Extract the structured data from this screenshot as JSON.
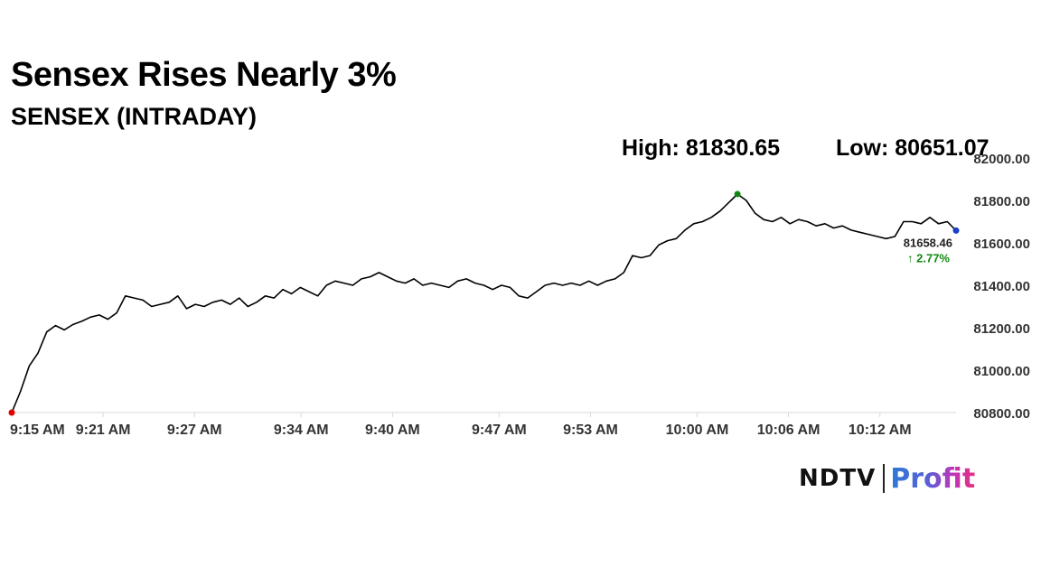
{
  "header": {
    "title": "Sensex Rises Nearly 3%",
    "subtitle": "SENSEX (INTRADAY)",
    "high_text": "High: 81830.65",
    "low_text": "Low: 80651.07"
  },
  "logo": {
    "ndtv": "NDTV",
    "profit": "Profit"
  },
  "chart_data": {
    "type": "line",
    "x_tick_labels": [
      "9:15 AM",
      "9:21 AM",
      "9:27 AM",
      "9:34 AM",
      "9:40 AM",
      "9:47 AM",
      "9:53 AM",
      "10:00 AM",
      "10:06 AM",
      "10:12 AM"
    ],
    "y_tick_labels": [
      "80800.00",
      "81000.00",
      "81200.00",
      "81400.00",
      "81600.00",
      "81800.00",
      "82000.00"
    ],
    "ylim": [
      80800,
      82000
    ],
    "start_time": "9:15 AM",
    "end_time": "10:17 AM",
    "series": [
      {
        "color": "#000000",
        "points": [
          [
            "9:15",
            80800
          ],
          [
            "9:15",
            80900
          ],
          [
            "9:16",
            81020
          ],
          [
            "9:16",
            81080
          ],
          [
            "9:17",
            81180
          ],
          [
            "9:17",
            81210
          ],
          [
            "9:18",
            81190
          ],
          [
            "9:18",
            81215
          ],
          [
            "9:19",
            81230
          ],
          [
            "9:20",
            81250
          ],
          [
            "9:20",
            81260
          ],
          [
            "9:21",
            81240
          ],
          [
            "9:21",
            81270
          ],
          [
            "9:22",
            81350
          ],
          [
            "9:22",
            81340
          ],
          [
            "9:23",
            81330
          ],
          [
            "9:23",
            81300
          ],
          [
            "9:24",
            81310
          ],
          [
            "9:24",
            81320
          ],
          [
            "9:25",
            81350
          ],
          [
            "9:25",
            81290
          ],
          [
            "9:26",
            81310
          ],
          [
            "9:27",
            81300
          ],
          [
            "9:27",
            81320
          ],
          [
            "9:28",
            81330
          ],
          [
            "9:28",
            81310
          ],
          [
            "9:29",
            81340
          ],
          [
            "9:29",
            81300
          ],
          [
            "9:30",
            81320
          ],
          [
            "9:31",
            81350
          ],
          [
            "9:31",
            81340
          ],
          [
            "9:32",
            81380
          ],
          [
            "9:33",
            81360
          ],
          [
            "9:33",
            81390
          ],
          [
            "9:34",
            81370
          ],
          [
            "9:34",
            81350
          ],
          [
            "9:35",
            81400
          ],
          [
            "9:36",
            81420
          ],
          [
            "9:36",
            81410
          ],
          [
            "9:37",
            81400
          ],
          [
            "9:37",
            81430
          ],
          [
            "9:38",
            81440
          ],
          [
            "9:38",
            81460
          ],
          [
            "9:39",
            81440
          ],
          [
            "9:40",
            81420
          ],
          [
            "9:40",
            81410
          ],
          [
            "9:41",
            81430
          ],
          [
            "9:41",
            81400
          ],
          [
            "9:42",
            81410
          ],
          [
            "9:43",
            81400
          ],
          [
            "9:43",
            81390
          ],
          [
            "9:44",
            81420
          ],
          [
            "9:44",
            81430
          ],
          [
            "9:45",
            81410
          ],
          [
            "9:46",
            81400
          ],
          [
            "9:46",
            81380
          ],
          [
            "9:47",
            81400
          ],
          [
            "9:47",
            81390
          ],
          [
            "9:48",
            81350
          ],
          [
            "9:48",
            81340
          ],
          [
            "9:49",
            81370
          ],
          [
            "9:49",
            81400
          ],
          [
            "9:50",
            81410
          ],
          [
            "9:51",
            81400
          ],
          [
            "9:51",
            81410
          ],
          [
            "9:52",
            81400
          ],
          [
            "9:52",
            81420
          ],
          [
            "9:53",
            81400
          ],
          [
            "9:54",
            81420
          ],
          [
            "9:54",
            81430
          ],
          [
            "9:55",
            81460
          ],
          [
            "9:55",
            81540
          ],
          [
            "9:56",
            81530
          ],
          [
            "9:57",
            81540
          ],
          [
            "9:57",
            81590
          ],
          [
            "9:58",
            81610
          ],
          [
            "9:58",
            81620
          ],
          [
            "9:59",
            81660
          ],
          [
            "9:59",
            81690
          ],
          [
            "10:00",
            81700
          ],
          [
            "10:00",
            81720
          ],
          [
            "10:01",
            81750
          ],
          [
            "10:01",
            81790
          ],
          [
            "10:02",
            81830
          ],
          [
            "10:02",
            81800
          ],
          [
            "10:03",
            81740
          ],
          [
            "10:04",
            81710
          ],
          [
            "10:04",
            81700
          ],
          [
            "10:05",
            81720
          ],
          [
            "10:05",
            81690
          ],
          [
            "10:06",
            81710
          ],
          [
            "10:07",
            81700
          ],
          [
            "10:07",
            81680
          ],
          [
            "10:08",
            81690
          ],
          [
            "10:08",
            81670
          ],
          [
            "10:09",
            81680
          ],
          [
            "10:10",
            81660
          ],
          [
            "10:10",
            81650
          ],
          [
            "10:11",
            81640
          ],
          [
            "10:12",
            81630
          ],
          [
            "10:12",
            81620
          ],
          [
            "10:13",
            81630
          ],
          [
            "10:13",
            81700
          ],
          [
            "10:14",
            81700
          ],
          [
            "10:15",
            81690
          ],
          [
            "10:15",
            81720
          ],
          [
            "10:16",
            81690
          ],
          [
            "10:16",
            81700
          ],
          [
            "10:17",
            81658
          ]
        ]
      }
    ],
    "markers": [
      {
        "label": "start",
        "time": "9:15",
        "value": 80800,
        "color": "#e00000"
      },
      {
        "label": "high",
        "time": "10:02",
        "value": 81830,
        "color": "#118811"
      },
      {
        "label": "last",
        "time": "10:17",
        "value": 81658,
        "color": "#1a3fc8"
      }
    ],
    "last_value_label": "81658.46",
    "change_label": "↑ 2.77%",
    "change_color": "#118811"
  }
}
